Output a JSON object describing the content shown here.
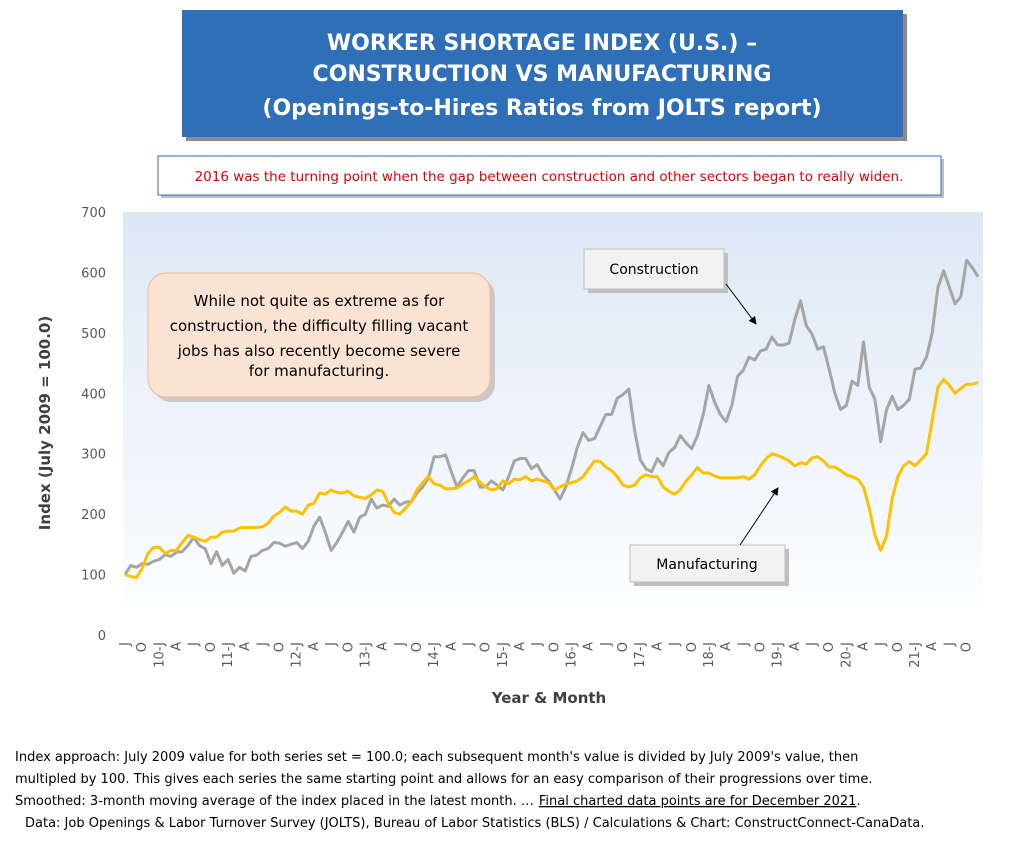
{
  "chart_data": {
    "type": "line",
    "title": [
      "WORKER SHORTAGE INDEX (U.S.) –",
      "CONSTRUCTION VS MANUFACTURING",
      "(Openings-to-Hires Ratios from JOLTS report)"
    ],
    "subtitle": "2016 was the turning point when the gap between construction and other sectors began to really widen.",
    "x_label": "Year & Month",
    "y_label": "Index (July 2009 = 100.0)",
    "callout": [
      "While not quite as extreme as for",
      "construction, the difficulty filling vacant",
      "jobs has also recently become severe",
      "for manufacturing."
    ],
    "notes": [
      "Index approach: July 2009 value for both series set = 100.0; each subsequent month's value is divided by July 2009's value, then",
      "multipled by 100. This gives each series the same starting point and allows for an easy comparison of their progressions over time.",
      {
        "text": "Smoothed: 3-month moving average of the index placed in the latest month. …",
        "underlined": "Final charted data points are for December 2021",
        "after": "."
      },
      "Data: Job Openings & Labor Turnover Survey (JOLTS), Bureau of Labor Statistics (BLS) / Calculations & Chart: ConstructConnect-CanaData."
    ],
    "categories": [
      "J",
      null,
      null,
      "O",
      null,
      null,
      "10-J",
      null,
      null,
      "A",
      null,
      null,
      "J",
      null,
      null,
      "O",
      null,
      null,
      "11-J",
      null,
      null,
      "A",
      null,
      null,
      "J",
      null,
      null,
      "O",
      null,
      null,
      "12-J",
      null,
      null,
      "A",
      null,
      null,
      "J",
      null,
      null,
      "O",
      null,
      null,
      "13-J",
      null,
      null,
      "A",
      null,
      null,
      "J",
      null,
      null,
      "O",
      null,
      null,
      "14-J",
      null,
      null,
      "A",
      null,
      null,
      "J",
      null,
      null,
      "O",
      null,
      null,
      "15-J",
      null,
      null,
      "A",
      null,
      null,
      "J",
      null,
      null,
      "O",
      null,
      null,
      "16-J",
      null,
      null,
      "A",
      null,
      null,
      "J",
      null,
      null,
      "O",
      null,
      null,
      "17-J",
      null,
      null,
      "A",
      null,
      null,
      "J",
      null,
      null,
      "O",
      null,
      null,
      "18-J",
      null,
      null,
      "A",
      null,
      null,
      "J",
      null,
      null,
      "O",
      null,
      null,
      "19-J",
      null,
      null,
      "A",
      null,
      null,
      "J",
      null,
      null,
      "O",
      null,
      null,
      "20-J",
      null,
      null,
      "A",
      null,
      null,
      "J",
      null,
      null,
      "O",
      null,
      null,
      "21-J",
      null,
      null,
      "A",
      null,
      null,
      "J",
      null,
      null,
      "O",
      null,
      null
    ],
    "series": [
      {
        "name": "Construction",
        "color": "#a5a5a5",
        "values": [
          100,
          115,
          112,
          118,
          117,
          122,
          125,
          133,
          130,
          137,
          138,
          148,
          162,
          148,
          143,
          118,
          138,
          115,
          125,
          102,
          112,
          106,
          130,
          132,
          140,
          143,
          153,
          152,
          147,
          150,
          153,
          143,
          155,
          180,
          195,
          170,
          140,
          153,
          170,
          188,
          170,
          195,
          200,
          225,
          210,
          215,
          213,
          225,
          215,
          220,
          220,
          235,
          245,
          260,
          295,
          295,
          298,
          270,
          245,
          260,
          272,
          272,
          245,
          245,
          255,
          248,
          240,
          262,
          288,
          292,
          292,
          275,
          282,
          265,
          255,
          240,
          225,
          245,
          275,
          310,
          335,
          322,
          325,
          345,
          365,
          365,
          392,
          398,
          407,
          340,
          290,
          275,
          270,
          292,
          280,
          302,
          310,
          330,
          318,
          308,
          330,
          365,
          413,
          385,
          365,
          353,
          380,
          428,
          438,
          460,
          455,
          470,
          473,
          493,
          480,
          480,
          483,
          522,
          553,
          512,
          498,
          473,
          477,
          440,
          400,
          373,
          380,
          420,
          413,
          485,
          410,
          390,
          320,
          372,
          395,
          373,
          380,
          390,
          440,
          442,
          460,
          500,
          575,
          603,
          575,
          548,
          560,
          620,
          608,
          593
        ]
      },
      {
        "name": "Manufacturing",
        "color": "#ffc000",
        "values": [
          100,
          97,
          95,
          110,
          135,
          145,
          145,
          135,
          140,
          140,
          153,
          165,
          162,
          158,
          155,
          162,
          162,
          170,
          172,
          172,
          177,
          178,
          178,
          178,
          179,
          185,
          197,
          203,
          212,
          205,
          205,
          200,
          215,
          218,
          235,
          233,
          240,
          236,
          235,
          238,
          230,
          228,
          226,
          232,
          240,
          238,
          218,
          203,
          200,
          210,
          220,
          240,
          252,
          262,
          250,
          248,
          242,
          242,
          243,
          250,
          255,
          262,
          253,
          245,
          240,
          242,
          255,
          250,
          258,
          257,
          262,
          255,
          258,
          255,
          252,
          240,
          245,
          250,
          252,
          255,
          262,
          275,
          288,
          287,
          278,
          272,
          262,
          248,
          245,
          248,
          260,
          265,
          262,
          262,
          245,
          238,
          233,
          240,
          255,
          265,
          277,
          268,
          268,
          263,
          260,
          260,
          260,
          260,
          262,
          258,
          265,
          280,
          292,
          300,
          297,
          293,
          288,
          280,
          285,
          283,
          293,
          295,
          288,
          278,
          278,
          272,
          265,
          262,
          258,
          245,
          210,
          165,
          140,
          163,
          225,
          262,
          280,
          287,
          280,
          290,
          300,
          355,
          410,
          423,
          413,
          400,
          408,
          415,
          415,
          418
        ]
      }
    ],
    "ylim": [
      0,
      700
    ],
    "yticks": [
      0,
      100,
      200,
      300,
      400,
      500,
      600,
      700
    ],
    "grid": false
  }
}
